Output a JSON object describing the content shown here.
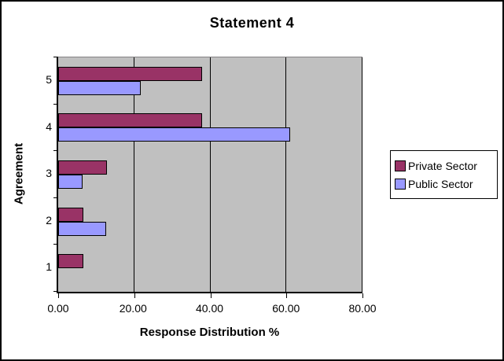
{
  "chart_data": {
    "type": "bar",
    "orientation": "horizontal",
    "title": "Statement 4",
    "xlabel": "Response Distribution %",
    "ylabel": "Agreement",
    "categories": [
      "5",
      "4",
      "3",
      "2",
      "1"
    ],
    "series": [
      {
        "name": "Private Sector",
        "color": "#993366",
        "values": [
          37.5,
          37.5,
          12.5,
          6.25,
          6.25
        ]
      },
      {
        "name": "Public Sector",
        "color": "#9999FF",
        "values": [
          21.21,
          60.61,
          6.06,
          12.12,
          0
        ]
      }
    ],
    "xlim": [
      0,
      80
    ],
    "xticks": [
      "0.00",
      "20.00",
      "40.00",
      "60.00",
      "80.00"
    ],
    "xtick_values": [
      0,
      20,
      40,
      60,
      80
    ],
    "grid": true,
    "legend_position": "right",
    "plot_background": "#C0C0C0",
    "bar_border_color": "#000000",
    "gridline_color": "#000000"
  }
}
